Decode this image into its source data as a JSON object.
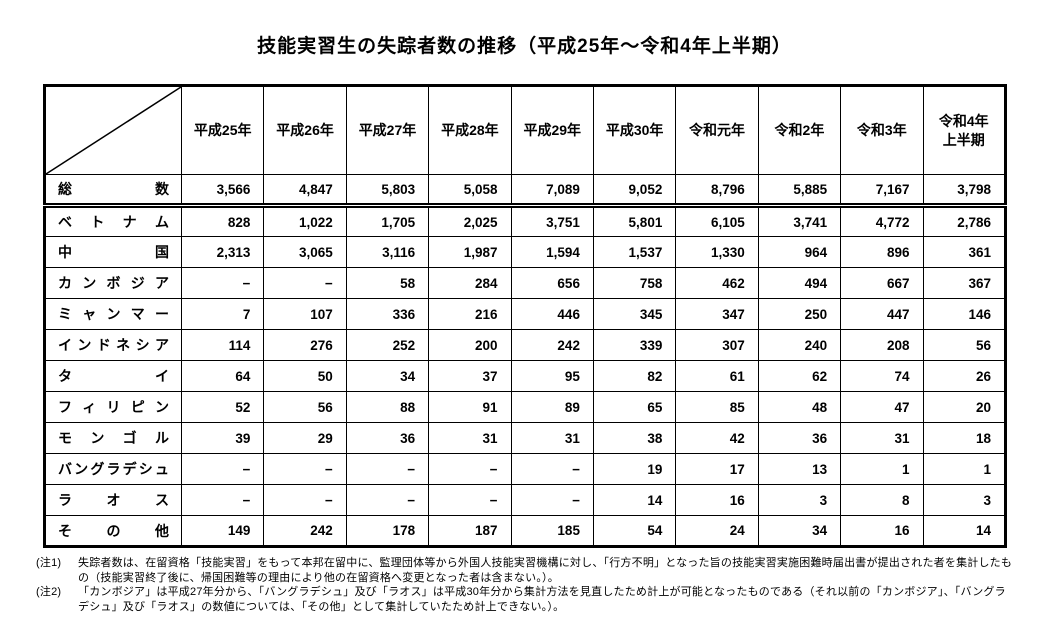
{
  "page": {
    "title": "技能実習生の失踪者数の推移（平成25年～令和4年上半期）"
  },
  "table": {
    "columns": [
      "平成25年",
      "平成26年",
      "平成27年",
      "平成28年",
      "平成29年",
      "平成30年",
      "令和元年",
      "令和2年",
      "令和3年",
      "令和4年\n上半期"
    ],
    "rows": [
      {
        "label": "総数",
        "values": [
          "3,566",
          "4,847",
          "5,803",
          "5,058",
          "7,089",
          "9,052",
          "8,796",
          "5,885",
          "7,167",
          "3,798"
        ]
      },
      {
        "label": "ベトナム",
        "values": [
          "828",
          "1,022",
          "1,705",
          "2,025",
          "3,751",
          "5,801",
          "6,105",
          "3,741",
          "4,772",
          "2,786"
        ]
      },
      {
        "label": "中国",
        "values": [
          "2,313",
          "3,065",
          "3,116",
          "1,987",
          "1,594",
          "1,537",
          "1,330",
          "964",
          "896",
          "361"
        ]
      },
      {
        "label": "カンボジア",
        "values": [
          "−",
          "−",
          "58",
          "284",
          "656",
          "758",
          "462",
          "494",
          "667",
          "367"
        ]
      },
      {
        "label": "ミャンマー",
        "values": [
          "7",
          "107",
          "336",
          "216",
          "446",
          "345",
          "347",
          "250",
          "447",
          "146"
        ]
      },
      {
        "label": "インドネシア",
        "values": [
          "114",
          "276",
          "252",
          "200",
          "242",
          "339",
          "307",
          "240",
          "208",
          "56"
        ]
      },
      {
        "label": "タイ",
        "values": [
          "64",
          "50",
          "34",
          "37",
          "95",
          "82",
          "61",
          "62",
          "74",
          "26"
        ]
      },
      {
        "label": "フィリピン",
        "values": [
          "52",
          "56",
          "88",
          "91",
          "89",
          "65",
          "85",
          "48",
          "47",
          "20"
        ]
      },
      {
        "label": "モンゴル",
        "values": [
          "39",
          "29",
          "36",
          "31",
          "31",
          "38",
          "42",
          "36",
          "31",
          "18"
        ]
      },
      {
        "label": "バングラデシュ",
        "values": [
          "−",
          "−",
          "−",
          "−",
          "−",
          "19",
          "17",
          "13",
          "1",
          "1"
        ]
      },
      {
        "label": "ラオス",
        "values": [
          "−",
          "−",
          "−",
          "−",
          "−",
          "14",
          "16",
          "3",
          "8",
          "3"
        ]
      },
      {
        "label": "その他",
        "values": [
          "149",
          "242",
          "178",
          "187",
          "185",
          "54",
          "24",
          "34",
          "16",
          "14"
        ]
      }
    ]
  },
  "notes": [
    {
      "label": "(注1)",
      "text": "失踪者数は、在留資格「技能実習」をもって本邦在留中に、監理団体等から外国人技能実習機構に対し、「行方不明」となった旨の技能実習実施困難時届出書が提出された者を集計したもの（技能実習終了後に、帰国困難等の理由により他の在留資格へ変更となった者は含まない。）。"
    },
    {
      "label": "(注2)",
      "text": "「カンボジア」は平成27年分から、「バングラデシュ」及び「ラオス」は平成30年分から集計方法を見直したため計上が可能となったものである（それ以前の「カンボジア」、「バングラデシュ」及び「ラオス」の数値については、「その他」として集計していたため計上できない。）。"
    }
  ]
}
